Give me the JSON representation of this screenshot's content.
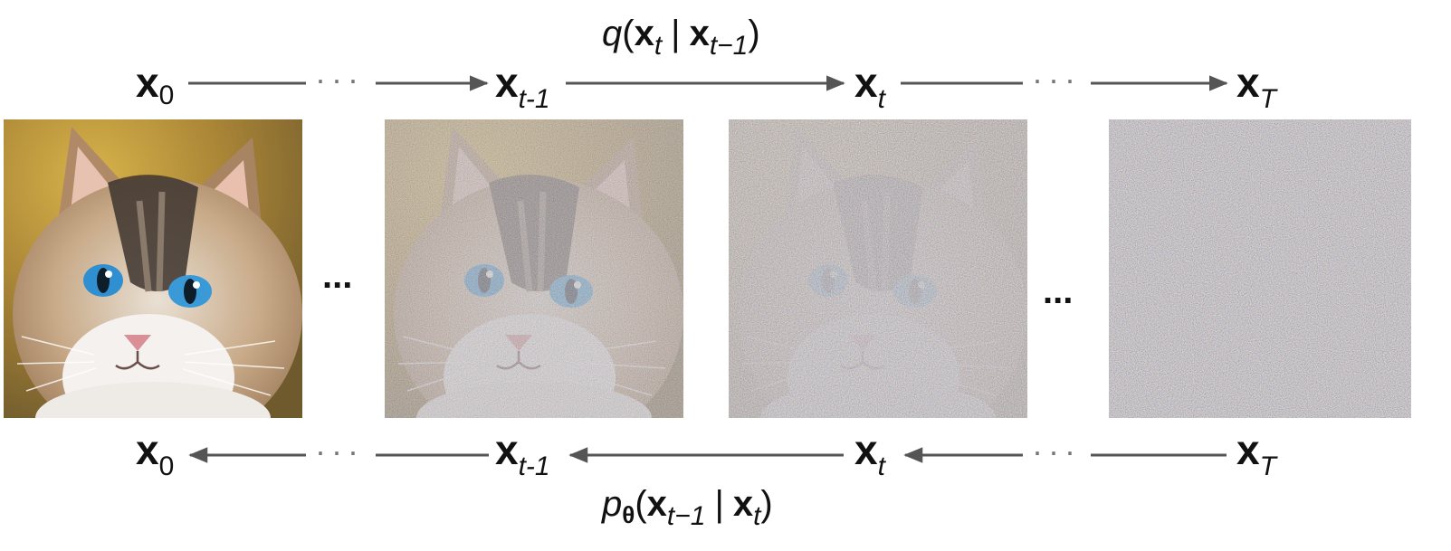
{
  "forward": {
    "nodes": [
      {
        "main": "x",
        "sub": "0"
      },
      {
        "main": "x",
        "sub": "t-1"
      },
      {
        "main": "x",
        "sub": "t"
      },
      {
        "main": "x",
        "sub": "T"
      }
    ],
    "formula": {
      "fn": "q",
      "open": "(",
      "x1": "x",
      "s1": "t",
      "bar": "|",
      "x2": "x",
      "s2": "t−1",
      "close": ")"
    },
    "gap_dots": "···"
  },
  "reverse": {
    "nodes": [
      {
        "main": "x",
        "sub": "0"
      },
      {
        "main": "x",
        "sub": "t-1"
      },
      {
        "main": "x",
        "sub": "t"
      },
      {
        "main": "x",
        "sub": "T"
      }
    ],
    "formula": {
      "fn": "p",
      "fn_sub": "θ",
      "open": "(",
      "x1": "x",
      "s1": "t−1",
      "bar": "|",
      "x2": "x",
      "s2": "t",
      "close": ")"
    },
    "gap_dots": "···"
  },
  "between_images_dots": "...",
  "images": [
    {
      "name": "cat-clean",
      "noise": 0.0
    },
    {
      "name": "cat-noisy-t-1",
      "noise": 0.55
    },
    {
      "name": "cat-noisy-t",
      "noise": 0.85
    },
    {
      "name": "pure-noise-T",
      "noise": 1.0
    }
  ],
  "colors": {
    "arrow": "#555555",
    "text": "#111111",
    "noise_base": "#8f8a88"
  }
}
